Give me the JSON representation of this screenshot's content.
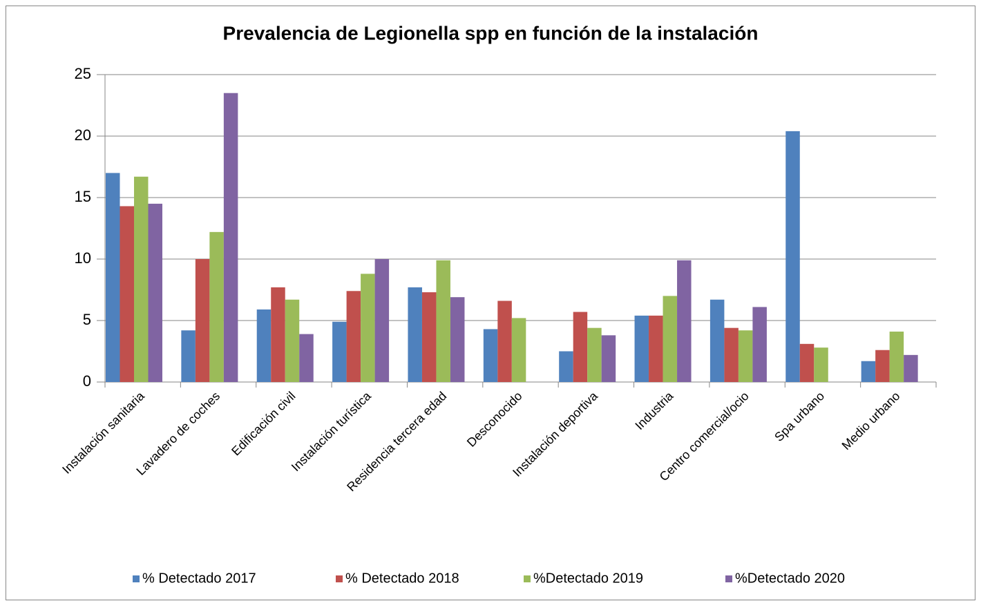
{
  "chart_data": {
    "type": "bar",
    "title": "Prevalencia de Legionella spp en función de la instalación",
    "categories": [
      "Instalación sanitaria",
      "Lavadero de coches",
      "Edificación civil",
      "Instalación turística",
      "Residencia tercera edad",
      "Desconocido",
      "Instalación deportiva",
      "Industria",
      "Centro comercial/ocio",
      "Spa urbano",
      "Medio urbano"
    ],
    "series": [
      {
        "name": "% Detectado 2017",
        "color": "#4f81bd",
        "values": [
          17.0,
          4.2,
          5.9,
          4.9,
          7.7,
          4.3,
          2.5,
          5.4,
          6.7,
          20.4,
          1.7
        ]
      },
      {
        "name": "% Detectado 2018",
        "color": "#c0504d",
        "values": [
          14.3,
          10.0,
          7.7,
          7.4,
          7.3,
          6.6,
          5.7,
          5.4,
          4.4,
          3.1,
          2.6
        ]
      },
      {
        "name": "%Detectado 2019",
        "color": "#9bbb59",
        "values": [
          16.7,
          12.2,
          6.7,
          8.8,
          9.9,
          5.2,
          4.4,
          7.0,
          4.2,
          2.8,
          4.1
        ]
      },
      {
        "name": "%Detectado 2020",
        "color": "#8064a2",
        "values": [
          14.5,
          23.5,
          3.9,
          10.0,
          6.9,
          null,
          3.8,
          9.9,
          6.1,
          null,
          2.2
        ]
      }
    ],
    "ylim": [
      0,
      25
    ],
    "yticks": [
      0,
      5,
      10,
      15,
      20,
      25
    ],
    "grid": true,
    "legend": "bottom"
  }
}
